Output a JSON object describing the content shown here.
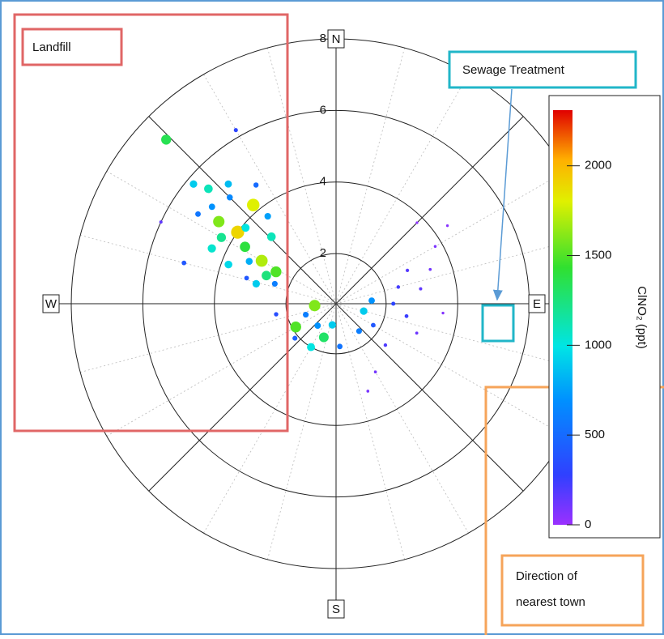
{
  "chart_data": {
    "type": "polar-scatter",
    "theta": [
      314,
      310,
      312,
      308,
      305,
      315,
      318,
      300,
      306,
      310,
      302,
      296,
      300,
      292,
      288,
      284,
      298,
      320,
      322,
      316,
      326,
      290,
      286,
      294,
      303,
      200,
      220,
      240,
      250,
      190,
      230,
      210,
      260,
      175,
      265,
      80,
      70,
      60,
      90,
      100,
      110,
      120,
      130,
      140,
      150,
      95,
      75,
      65,
      85,
      105,
      160,
      55,
      45,
      285,
      330,
      295
    ],
    "r": [
      7.2,
      5.8,
      5.4,
      5.0,
      4.6,
      4.8,
      5.1,
      4.3,
      4.0,
      3.9,
      3.6,
      3.3,
      3.0,
      2.7,
      2.4,
      2.9,
      2.5,
      4.2,
      3.7,
      3.2,
      4.6,
      3.8,
      3.2,
      4.4,
      5.2,
      1.6,
      1.4,
      1.9,
      1.5,
      1.2,
      2.1,
      2.0,
      2.3,
      1.8,
      1.2,
      3.0,
      3.4,
      3.8,
      2.2,
      2.6,
      3.0,
      1.8,
      2.4,
      1.6,
      2.8,
      3.6,
      2.4,
      2.8,
      1.6,
      1.4,
      3.2,
      4.4,
      3.8,
      5.0,
      6.2,
      6.0
    ],
    "values": [
      1350,
      900,
      1100,
      700,
      1600,
      650,
      850,
      1200,
      1900,
      1000,
      1400,
      800,
      1700,
      1250,
      600,
      900,
      1500,
      1800,
      750,
      1100,
      500,
      950,
      400,
      1050,
      560,
      1300,
      700,
      1500,
      600,
      900,
      450,
      1000,
      350,
      550,
      1600,
      150,
      100,
      80,
      300,
      250,
      120,
      400,
      200,
      600,
      100,
      60,
      220,
      180,
      700,
      900,
      90,
      50,
      40,
      400,
      300,
      150
    ],
    "rlim": [
      0.6,
      8
    ],
    "rticks": [
      2,
      4,
      6,
      8
    ],
    "directions": [
      "N",
      "E",
      "S",
      "W"
    ],
    "clim": [
      0,
      2310
    ],
    "cticks": [
      0,
      500,
      1000,
      1500,
      2000
    ],
    "colorbar_label": "ClNO₂ (ppt)",
    "annotations": {
      "landfill": "Landfill",
      "sewage": "Sewage Treatment",
      "town": [
        "Direction of",
        "nearest town"
      ]
    }
  }
}
